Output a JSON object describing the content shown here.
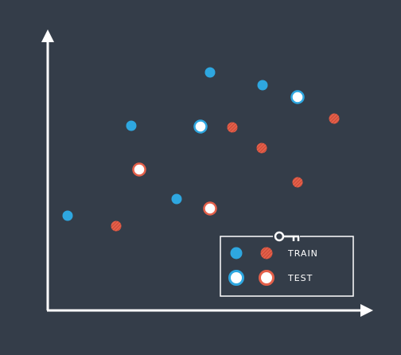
{
  "legend": {
    "train": "TRAIN",
    "test": "TEST"
  }
}
